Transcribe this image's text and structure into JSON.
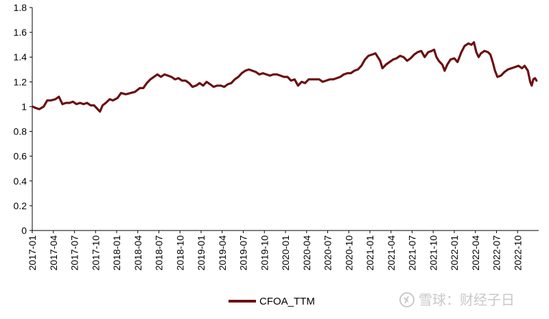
{
  "chart_data": {
    "type": "line",
    "title": "",
    "xlabel": "",
    "ylabel": "",
    "ylim": [
      0,
      1.8
    ],
    "yticks": [
      "1.8",
      "1.6",
      "1.4",
      "1.2",
      "1",
      "0.8",
      "0.6",
      "0.4",
      "0.2",
      "0"
    ],
    "xlim": [
      "2017-01",
      "2022-12"
    ],
    "xticks": [
      "2017-01",
      "2017-04",
      "2017-07",
      "2017-10",
      "2018-01",
      "2018-04",
      "2018-07",
      "2018-10",
      "2019-01",
      "2019-04",
      "2019-07",
      "2019-10",
      "2020-01",
      "2020-04",
      "2020-07",
      "2020-10",
      "2021-01",
      "2021-04",
      "2021-07",
      "2021-10",
      "2022-01",
      "2022-04",
      "2022-07",
      "2022-10"
    ],
    "grid": false,
    "legend_position": "bottom",
    "series": [
      {
        "name": "CFOA_TTM",
        "color": "#6b0f0f",
        "points": [
          [
            "2017-01-03",
            1.0
          ],
          [
            "2017-01-15",
            0.99
          ],
          [
            "2017-02-01",
            0.98
          ],
          [
            "2017-02-20",
            1.0
          ],
          [
            "2017-03-05",
            1.05
          ],
          [
            "2017-03-20",
            1.05
          ],
          [
            "2017-04-10",
            1.06
          ],
          [
            "2017-04-25",
            1.08
          ],
          [
            "2017-05-10",
            1.02
          ],
          [
            "2017-05-25",
            1.03
          ],
          [
            "2017-06-10",
            1.03
          ],
          [
            "2017-06-25",
            1.04
          ],
          [
            "2017-07-10",
            1.02
          ],
          [
            "2017-07-25",
            1.03
          ],
          [
            "2017-08-10",
            1.02
          ],
          [
            "2017-08-25",
            1.03
          ],
          [
            "2017-09-10",
            1.01
          ],
          [
            "2017-09-25",
            1.01
          ],
          [
            "2017-10-10",
            0.98
          ],
          [
            "2017-10-20",
            0.96
          ],
          [
            "2017-11-01",
            1.01
          ],
          [
            "2017-11-15",
            1.03
          ],
          [
            "2017-12-01",
            1.06
          ],
          [
            "2017-12-15",
            1.05
          ],
          [
            "2018-01-05",
            1.07
          ],
          [
            "2018-01-20",
            1.11
          ],
          [
            "2018-02-10",
            1.1
          ],
          [
            "2018-03-01",
            1.11
          ],
          [
            "2018-03-20",
            1.12
          ],
          [
            "2018-04-10",
            1.15
          ],
          [
            "2018-04-25",
            1.15
          ],
          [
            "2018-05-10",
            1.19
          ],
          [
            "2018-05-25",
            1.22
          ],
          [
            "2018-06-10",
            1.24
          ],
          [
            "2018-06-25",
            1.26
          ],
          [
            "2018-07-10",
            1.24
          ],
          [
            "2018-07-25",
            1.26
          ],
          [
            "2018-08-10",
            1.25
          ],
          [
            "2018-08-25",
            1.24
          ],
          [
            "2018-09-10",
            1.22
          ],
          [
            "2018-09-25",
            1.23
          ],
          [
            "2018-10-10",
            1.21
          ],
          [
            "2018-10-25",
            1.21
          ],
          [
            "2018-11-10",
            1.19
          ],
          [
            "2018-11-25",
            1.16
          ],
          [
            "2018-12-10",
            1.17
          ],
          [
            "2018-12-25",
            1.19
          ],
          [
            "2019-01-10",
            1.17
          ],
          [
            "2019-01-25",
            1.2
          ],
          [
            "2019-02-10",
            1.18
          ],
          [
            "2019-02-25",
            1.16
          ],
          [
            "2019-03-10",
            1.17
          ],
          [
            "2019-03-25",
            1.17
          ],
          [
            "2019-04-10",
            1.16
          ],
          [
            "2019-04-25",
            1.18
          ],
          [
            "2019-05-10",
            1.19
          ],
          [
            "2019-05-25",
            1.22
          ],
          [
            "2019-06-10",
            1.24
          ],
          [
            "2019-06-25",
            1.27
          ],
          [
            "2019-07-10",
            1.29
          ],
          [
            "2019-07-25",
            1.3
          ],
          [
            "2019-08-10",
            1.29
          ],
          [
            "2019-08-25",
            1.28
          ],
          [
            "2019-09-10",
            1.26
          ],
          [
            "2019-09-25",
            1.27
          ],
          [
            "2019-10-10",
            1.26
          ],
          [
            "2019-10-25",
            1.25
          ],
          [
            "2019-11-10",
            1.26
          ],
          [
            "2019-11-25",
            1.26
          ],
          [
            "2019-12-10",
            1.25
          ],
          [
            "2019-12-25",
            1.24
          ],
          [
            "2020-01-10",
            1.24
          ],
          [
            "2020-01-25",
            1.21
          ],
          [
            "2020-02-10",
            1.22
          ],
          [
            "2020-02-25",
            1.17
          ],
          [
            "2020-03-10",
            1.2
          ],
          [
            "2020-03-25",
            1.19
          ],
          [
            "2020-04-10",
            1.22
          ],
          [
            "2020-04-25",
            1.22
          ],
          [
            "2020-05-10",
            1.22
          ],
          [
            "2020-05-25",
            1.22
          ],
          [
            "2020-06-10",
            1.2
          ],
          [
            "2020-06-25",
            1.21
          ],
          [
            "2020-07-10",
            1.22
          ],
          [
            "2020-07-25",
            1.22
          ],
          [
            "2020-08-10",
            1.23
          ],
          [
            "2020-08-25",
            1.24
          ],
          [
            "2020-09-10",
            1.26
          ],
          [
            "2020-09-25",
            1.27
          ],
          [
            "2020-10-10",
            1.27
          ],
          [
            "2020-10-25",
            1.29
          ],
          [
            "2020-11-10",
            1.3
          ],
          [
            "2020-11-25",
            1.33
          ],
          [
            "2020-12-10",
            1.38
          ],
          [
            "2020-12-25",
            1.41
          ],
          [
            "2021-01-10",
            1.42
          ],
          [
            "2021-01-25",
            1.43
          ],
          [
            "2021-02-05",
            1.4
          ],
          [
            "2021-02-15",
            1.37
          ],
          [
            "2021-02-25",
            1.31
          ],
          [
            "2021-03-10",
            1.34
          ],
          [
            "2021-03-25",
            1.36
          ],
          [
            "2021-04-10",
            1.38
          ],
          [
            "2021-04-25",
            1.39
          ],
          [
            "2021-05-10",
            1.41
          ],
          [
            "2021-05-25",
            1.4
          ],
          [
            "2021-06-10",
            1.37
          ],
          [
            "2021-06-25",
            1.39
          ],
          [
            "2021-07-10",
            1.42
          ],
          [
            "2021-07-25",
            1.44
          ],
          [
            "2021-08-10",
            1.45
          ],
          [
            "2021-08-25",
            1.4
          ],
          [
            "2021-09-10",
            1.44
          ],
          [
            "2021-09-25",
            1.45
          ],
          [
            "2021-10-05",
            1.46
          ],
          [
            "2021-10-15",
            1.4
          ],
          [
            "2021-10-25",
            1.37
          ],
          [
            "2021-11-10",
            1.34
          ],
          [
            "2021-11-20",
            1.29
          ],
          [
            "2021-12-01",
            1.34
          ],
          [
            "2021-12-15",
            1.38
          ],
          [
            "2022-01-01",
            1.39
          ],
          [
            "2022-01-15",
            1.36
          ],
          [
            "2022-02-01",
            1.44
          ],
          [
            "2022-02-15",
            1.49
          ],
          [
            "2022-03-01",
            1.51
          ],
          [
            "2022-03-15",
            1.5
          ],
          [
            "2022-03-25",
            1.52
          ],
          [
            "2022-04-05",
            1.44
          ],
          [
            "2022-04-15",
            1.4
          ],
          [
            "2022-04-25",
            1.43
          ],
          [
            "2022-05-10",
            1.45
          ],
          [
            "2022-05-25",
            1.44
          ],
          [
            "2022-06-05",
            1.42
          ],
          [
            "2022-06-15",
            1.36
          ],
          [
            "2022-06-25",
            1.29
          ],
          [
            "2022-07-05",
            1.24
          ],
          [
            "2022-07-20",
            1.25
          ],
          [
            "2022-08-05",
            1.28
          ],
          [
            "2022-08-20",
            1.3
          ],
          [
            "2022-09-05",
            1.31
          ],
          [
            "2022-09-20",
            1.32
          ],
          [
            "2022-10-05",
            1.33
          ],
          [
            "2022-10-20",
            1.31
          ],
          [
            "2022-11-01",
            1.33
          ],
          [
            "2022-11-15",
            1.29
          ],
          [
            "2022-11-25",
            1.2
          ],
          [
            "2022-12-01",
            1.17
          ],
          [
            "2022-12-08",
            1.22
          ],
          [
            "2022-12-15",
            1.23
          ],
          [
            "2022-12-22",
            1.21
          ]
        ]
      }
    ]
  },
  "legend": {
    "label": "CFOA_TTM",
    "color": "#6b0f0f"
  },
  "watermark": {
    "text": "雪球：财经子日",
    "icon": "snowball-logo-icon"
  }
}
